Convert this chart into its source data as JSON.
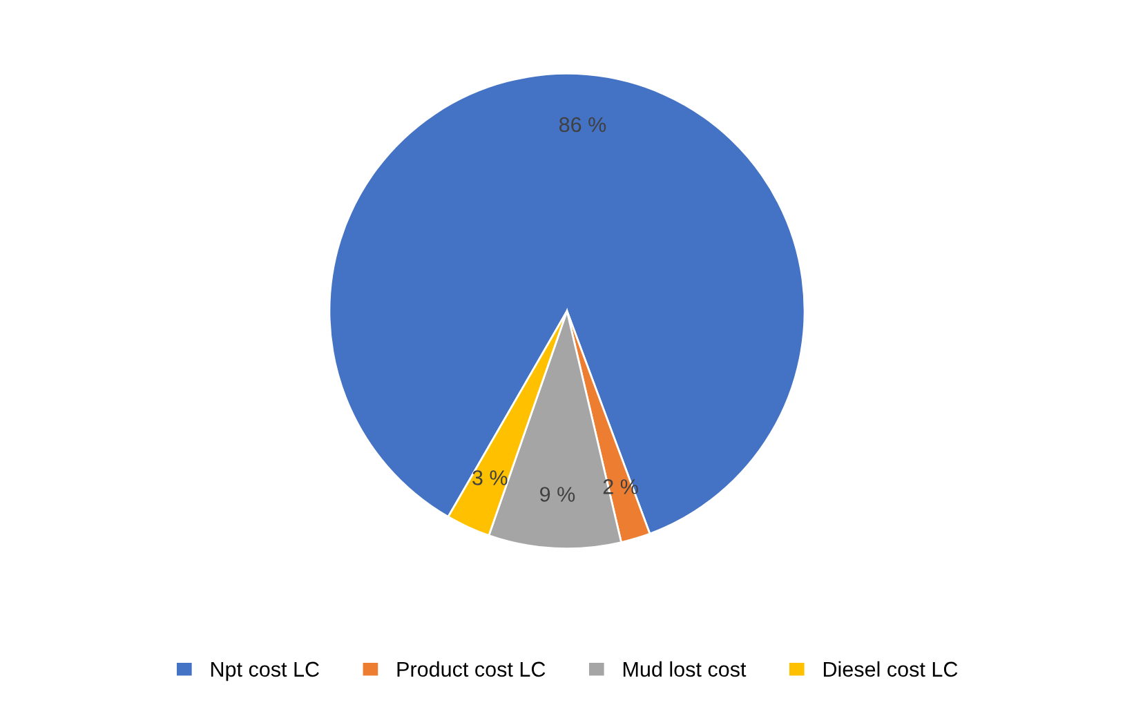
{
  "chart_data": {
    "type": "pie",
    "categories": [
      "Npt cost LC",
      "Product cost LC",
      "Mud lost cost",
      "Diesel cost LC"
    ],
    "values": [
      86,
      2,
      9,
      3
    ],
    "colors": [
      "#4472c4",
      "#ed7d31",
      "#a5a5a5",
      "#ffc000"
    ],
    "value_labels": [
      "86 %",
      "2 %",
      "9 %",
      "3 %"
    ],
    "legend": "bottom"
  }
}
